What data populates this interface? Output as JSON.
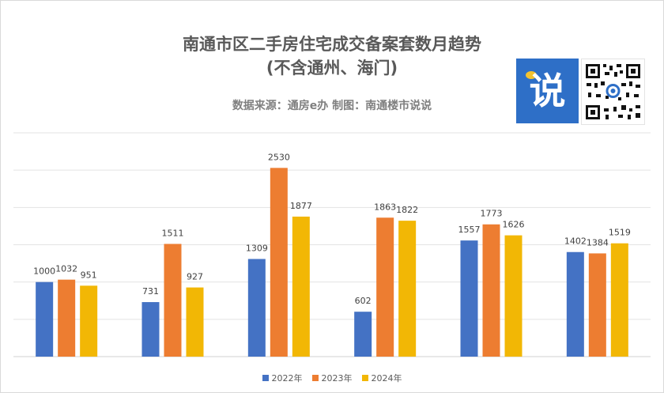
{
  "chart_data": {
    "type": "bar",
    "title_line1": "南通市区二手房住宅成交备案套数月趋势",
    "title_line2": "(不含通州、海门)",
    "subtitle": "数据来源：通房e办  制图：南通楼市说说",
    "categories": [
      "",
      "",
      "",
      "",
      "",
      ""
    ],
    "series": [
      {
        "name": "2022年",
        "color": "#4472c4",
        "values": [
          1000,
          731,
          1309,
          602,
          1557,
          1402
        ]
      },
      {
        "name": "2023年",
        "color": "#ed7d31",
        "values": [
          1032,
          1511,
          2530,
          1863,
          1773,
          1384
        ]
      },
      {
        "name": "2024年",
        "color": "#f2b705",
        "values": [
          951,
          927,
          1877,
          1822,
          1626,
          1519
        ]
      }
    ],
    "ylim": [
      0,
      3000
    ],
    "grid": true,
    "legend": "bottom-center"
  },
  "logo": {
    "text": "说",
    "icon": "shuo-logo-icon"
  }
}
